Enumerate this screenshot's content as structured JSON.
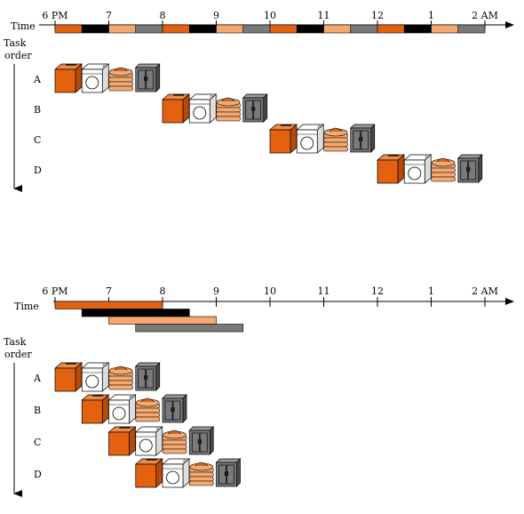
{
  "colors": {
    "wash": "#e4620f",
    "dry": "#000000",
    "fold": "#f4a971",
    "store": "#7a7a7a",
    "line": "#000000"
  },
  "stages": [
    "wash",
    "dry",
    "fold",
    "store"
  ],
  "icons": [
    "washer-icon",
    "dryer-icon",
    "folded-clothes-icon",
    "closet-icon"
  ],
  "tick_labels": [
    "6 PM",
    "7",
    "8",
    "9",
    "10",
    "11",
    "12",
    "1",
    "2 AM"
  ],
  "sequential": {
    "time_label": "Time",
    "task_order_label": [
      "Task",
      "order"
    ],
    "tasks": [
      "A",
      "B",
      "C",
      "D"
    ],
    "task_starts": [
      0,
      2,
      4,
      6
    ]
  },
  "pipelined": {
    "time_label": "Time",
    "task_order_label": [
      "Task",
      "order"
    ],
    "tasks": [
      "A",
      "B",
      "C",
      "D"
    ],
    "task_starts": [
      0,
      0.5,
      1,
      1.5
    ]
  }
}
